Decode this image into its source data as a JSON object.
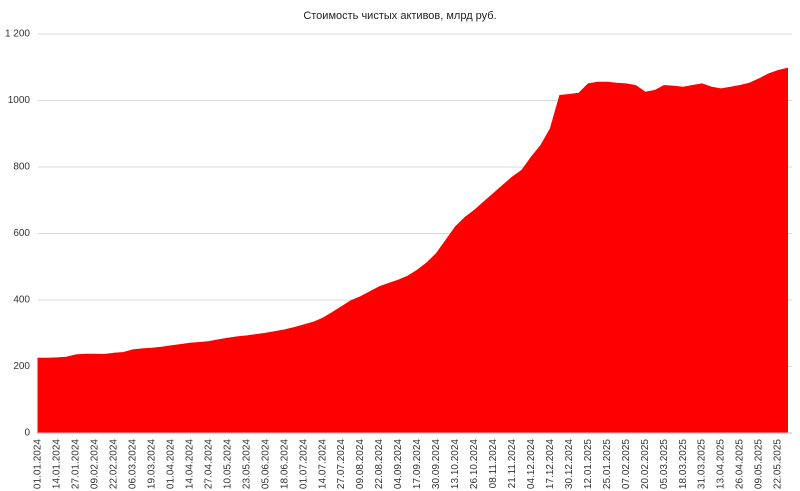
{
  "chart_data": {
    "type": "area",
    "title": "Стоимость чистых активов, млрд руб.",
    "categories": [
      "01.01.2024",
      null,
      "14.01.2024",
      null,
      "27.01.2024",
      null,
      "09.02.2024",
      null,
      "22.02.2024",
      null,
      "06.03.2024",
      null,
      "19.03.2024",
      null,
      "01.04.2024",
      null,
      "14.04.2024",
      null,
      "27.04.2024",
      null,
      "10.05.2024",
      null,
      "23.05.2024",
      null,
      "05.06.2024",
      null,
      "18.06.2024",
      null,
      "01.07.2024",
      null,
      "14.07.2024",
      null,
      "27.07.2024",
      null,
      "09.08.2024",
      null,
      "22.08.2024",
      null,
      "04.09.2024",
      null,
      "17.09.2024",
      null,
      "30.09.2024",
      null,
      "13.10.2024",
      null,
      "26.10.2024",
      null,
      "08.11.2024",
      null,
      "21.11.2024",
      null,
      "04.12.2024",
      null,
      "17.12.2024",
      null,
      "30.12.2024",
      null,
      "12.01.2025",
      null,
      "25.01.2025",
      null,
      "07.02.2025",
      null,
      "20.02.2025",
      null,
      "05.03.2025",
      null,
      "18.03.2025",
      null,
      "31.03.2025",
      null,
      "13.04.2025",
      null,
      "26.04.2025",
      null,
      "09.05.2025",
      null,
      "22.05.2025",
      null
    ],
    "values": [
      225,
      225,
      226,
      228,
      235,
      237,
      237,
      236,
      240,
      242,
      250,
      253,
      255,
      258,
      262,
      266,
      270,
      272,
      275,
      280,
      285,
      289,
      292,
      296,
      300,
      305,
      310,
      317,
      325,
      333,
      345,
      362,
      380,
      398,
      410,
      425,
      440,
      450,
      460,
      472,
      490,
      512,
      540,
      580,
      620,
      648,
      670,
      695,
      720,
      745,
      770,
      790,
      830,
      865,
      915,
      1015,
      1018,
      1022,
      1050,
      1055,
      1055,
      1052,
      1050,
      1045,
      1025,
      1030,
      1045,
      1043,
      1040,
      1045,
      1050,
      1040,
      1035,
      1040,
      1045,
      1052,
      1065,
      1080,
      1090,
      1097
    ],
    "color": "#ff0000",
    "ylim": [
      0,
      1200
    ],
    "yticks": [
      0,
      200,
      400,
      600,
      800,
      1000,
      {
        "value": 1200,
        "label": "1 200"
      }
    ],
    "grid": true
  }
}
